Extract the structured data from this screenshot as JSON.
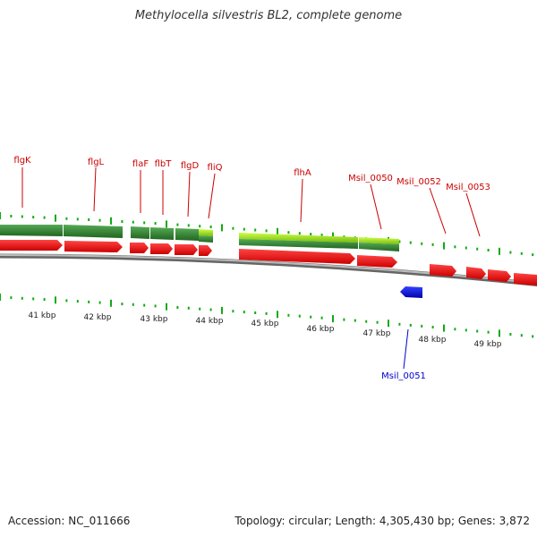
{
  "title": "Methylocella silvestris BL2, complete genome",
  "footer": {
    "accession": "Accession: NC_011666",
    "summary": "Topology: circular; Length: 4,305,430 bp; Genes: 3,872"
  },
  "colors": {
    "cds_forward": "#ee0000",
    "cds_reverse": "#0000dd",
    "gene_green": "#338833",
    "gene_light_green": "#99dd22",
    "backbone": "#888888",
    "tick": "#11aa11",
    "label_forward": "#cc0000",
    "label_reverse": "#0000cc",
    "scale_text": "#222222"
  },
  "scale": {
    "unit": "kbp",
    "labels": [
      "41 kbp",
      "42 kbp",
      "43 kbp",
      "44 kbp",
      "45 kbp",
      "46 kbp",
      "47 kbp",
      "48 kbp",
      "49 kbp"
    ]
  },
  "gene_labels": [
    {
      "name": "flgK",
      "strand": "forward"
    },
    {
      "name": "flgL",
      "strand": "forward"
    },
    {
      "name": "flaF",
      "strand": "forward"
    },
    {
      "name": "flbT",
      "strand": "forward"
    },
    {
      "name": "flgD",
      "strand": "forward"
    },
    {
      "name": "fliQ",
      "strand": "forward"
    },
    {
      "name": "flhA",
      "strand": "forward"
    },
    {
      "name": "Msil_0050",
      "strand": "forward"
    },
    {
      "name": "Msil_0052",
      "strand": "forward"
    },
    {
      "name": "Msil_0053",
      "strand": "forward"
    },
    {
      "name": "Msil_0051",
      "strand": "reverse"
    }
  ]
}
